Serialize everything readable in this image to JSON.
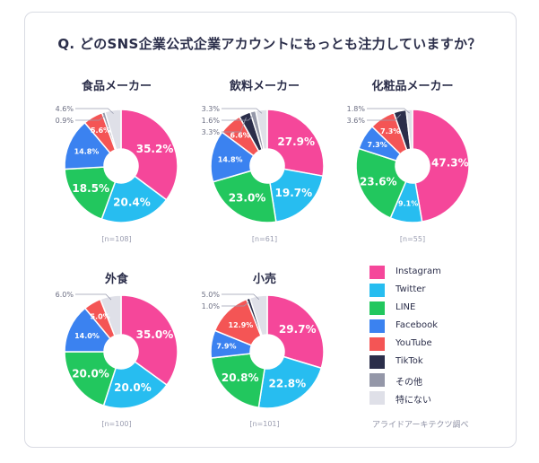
{
  "title": "Q. どのSNS企業公式企業アカウントにもっとも注力していますか？",
  "credit": "アライドアーキテクツ調べ",
  "legend": [
    {
      "name": "Instagram",
      "color": "#f5479a"
    },
    {
      "name": "Twitter",
      "color": "#27bdf0"
    },
    {
      "name": "LINE",
      "color": "#22c75e"
    },
    {
      "name": "Facebook",
      "color": "#3b82f0"
    },
    {
      "name": "YouTube",
      "color": "#f45555"
    },
    {
      "name": "TikTok",
      "color": "#2b2e4a"
    },
    {
      "name": "その他",
      "color": "#9497a8"
    },
    {
      "name": "特にない",
      "color": "#dfe0e8"
    }
  ],
  "chart_data": [
    {
      "type": "pie",
      "title": "食品メーカー",
      "n_label": "[n=108]",
      "categories": [
        "Instagram",
        "Twitter",
        "LINE",
        "Facebook",
        "YouTube",
        "TikTok",
        "その他",
        "特にない"
      ],
      "values": [
        35.2,
        20.4,
        18.5,
        14.8,
        5.6,
        0.0,
        0.9,
        4.6
      ]
    },
    {
      "type": "pie",
      "title": "飲料メーカー",
      "n_label": "[n=61]",
      "categories": [
        "Instagram",
        "Twitter",
        "LINE",
        "Facebook",
        "YouTube",
        "TikTok",
        "その他",
        "特にない"
      ],
      "values": [
        27.9,
        19.7,
        23.0,
        14.8,
        6.6,
        3.3,
        1.6,
        3.3
      ]
    },
    {
      "type": "pie",
      "title": "化粧品メーカー",
      "n_label": "[n=55]",
      "categories": [
        "Instagram",
        "Twitter",
        "LINE",
        "Facebook",
        "YouTube",
        "TikTok",
        "その他",
        "特にない"
      ],
      "values": [
        47.3,
        9.1,
        23.6,
        7.3,
        7.3,
        3.6,
        0.0,
        1.8
      ]
    },
    {
      "type": "pie",
      "title": "外食",
      "n_label": "[n=100]",
      "categories": [
        "Instagram",
        "Twitter",
        "LINE",
        "Facebook",
        "YouTube",
        "TikTok",
        "その他",
        "特にない"
      ],
      "values": [
        35.0,
        20.0,
        20.0,
        14.0,
        5.0,
        0.0,
        0.0,
        6.0
      ]
    },
    {
      "type": "pie",
      "title": "小売",
      "n_label": "[n=101]",
      "categories": [
        "Instagram",
        "Twitter",
        "LINE",
        "Facebook",
        "YouTube",
        "TikTok",
        "その他",
        "特にない"
      ],
      "values": [
        29.7,
        22.8,
        20.8,
        7.9,
        12.9,
        1.0,
        0.0,
        5.0
      ]
    }
  ]
}
